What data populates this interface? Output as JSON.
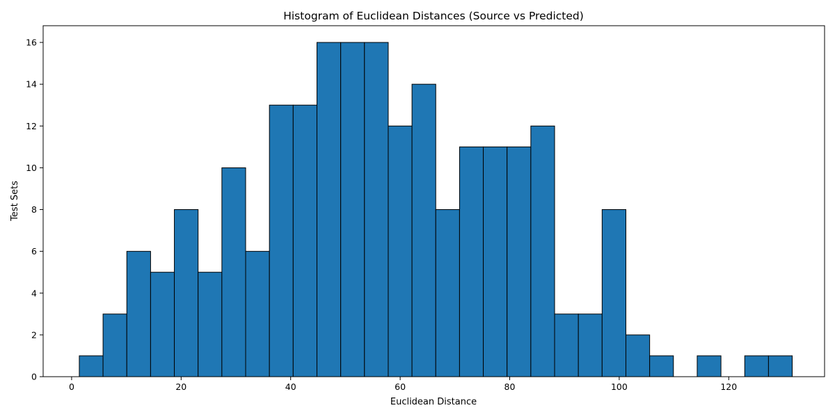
{
  "chart_data": {
    "type": "bar",
    "title": "Histogram of Euclidean Distances (Source vs Predicted)",
    "xlabel": "Euclidean Distance",
    "ylabel": "Test Sets",
    "xlim": [
      -5.2,
      137.5
    ],
    "ylim": [
      0,
      16.8
    ],
    "xticks": [
      0,
      20,
      40,
      60,
      80,
      100,
      120
    ],
    "yticks": [
      0,
      2,
      4,
      6,
      8,
      10,
      12,
      14,
      16
    ],
    "bin_start": 1.4,
    "bin_width": 4.34,
    "counts": [
      1,
      3,
      6,
      5,
      8,
      5,
      10,
      6,
      13,
      13,
      16,
      16,
      16,
      12,
      14,
      8,
      11,
      11,
      11,
      12,
      3,
      3,
      8,
      2,
      1,
      0,
      1,
      0,
      1,
      1
    ],
    "bar_color": "#1f77b4",
    "edge_color": "#000000",
    "grid": false
  }
}
